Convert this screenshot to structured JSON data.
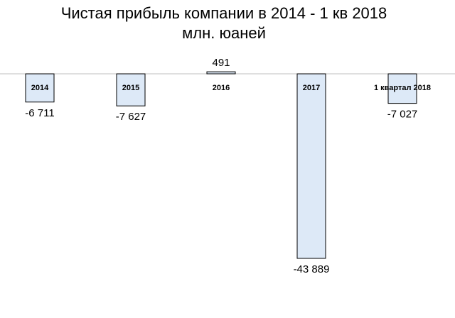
{
  "chart_data": {
    "type": "bar",
    "title_lines": [
      "Чистая прибыль компании в 2014 - 1 кв 2018",
      "млн. юаней"
    ],
    "categories": [
      "2014",
      "2015",
      "2016",
      "2017",
      "1 квартал 2018"
    ],
    "values": [
      -6711,
      -7627,
      491,
      -43889,
      -7027
    ],
    "value_labels": [
      "-6 711",
      "-7 627",
      "491",
      "-43 889",
      "-7 027"
    ],
    "xlabel": "",
    "ylabel": "",
    "ylim": [
      -45000,
      1000
    ],
    "grid": false,
    "legend": "none",
    "colors": {
      "bar_fill": "#dde9f7",
      "bar_stroke": "#000000",
      "axis": "#bfbfbf"
    }
  }
}
